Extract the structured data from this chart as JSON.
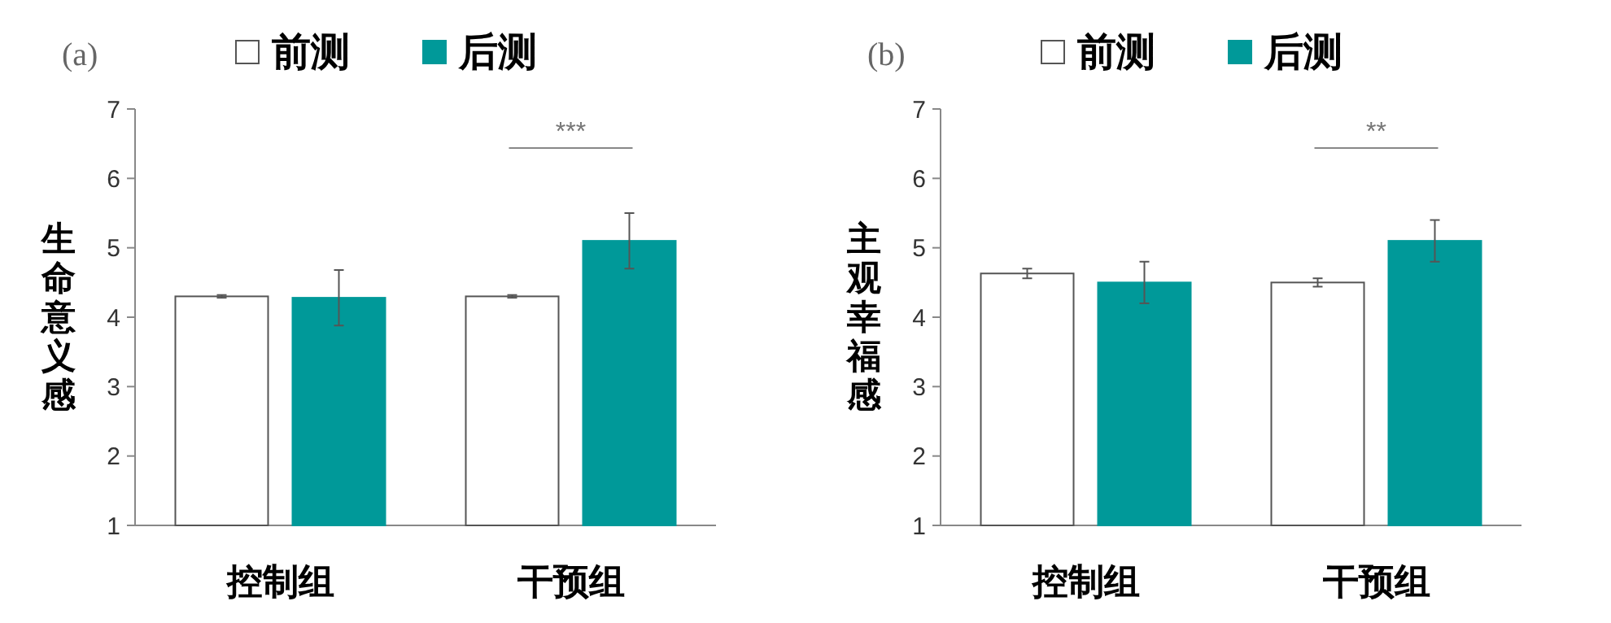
{
  "chart_data": [
    {
      "type": "bar",
      "title": "(a)",
      "ylabel": "生命意义感",
      "categories": [
        "控制组",
        "干预组"
      ],
      "series": [
        {
          "name": "前测",
          "color": "#ffffff",
          "values": [
            4.3,
            4.3
          ],
          "errors": [
            0.02,
            0.02
          ]
        },
        {
          "name": "后测",
          "color": "#009999",
          "values": [
            4.28,
            5.1
          ],
          "errors": [
            0.4,
            0.4
          ]
        }
      ],
      "ylim": [
        1,
        7
      ],
      "yticks": [
        1,
        2,
        3,
        4,
        5,
        6,
        7
      ],
      "grid": false,
      "legend": "top",
      "annotations": [
        "***"
      ]
    },
    {
      "type": "bar",
      "title": "(b)",
      "ylabel": "主观幸福感",
      "categories": [
        "控制组",
        "干预组"
      ],
      "series": [
        {
          "name": "前测",
          "color": "#ffffff",
          "values": [
            4.63,
            4.5
          ],
          "errors": [
            0.07,
            0.06
          ]
        },
        {
          "name": "后测",
          "color": "#009999",
          "values": [
            4.5,
            5.1
          ],
          "errors": [
            0.3,
            0.3
          ]
        }
      ],
      "ylim": [
        1,
        7
      ],
      "yticks": [
        1,
        2,
        3,
        4,
        5,
        6,
        7
      ],
      "grid": false,
      "legend": "top",
      "annotations": [
        "**"
      ]
    }
  ]
}
